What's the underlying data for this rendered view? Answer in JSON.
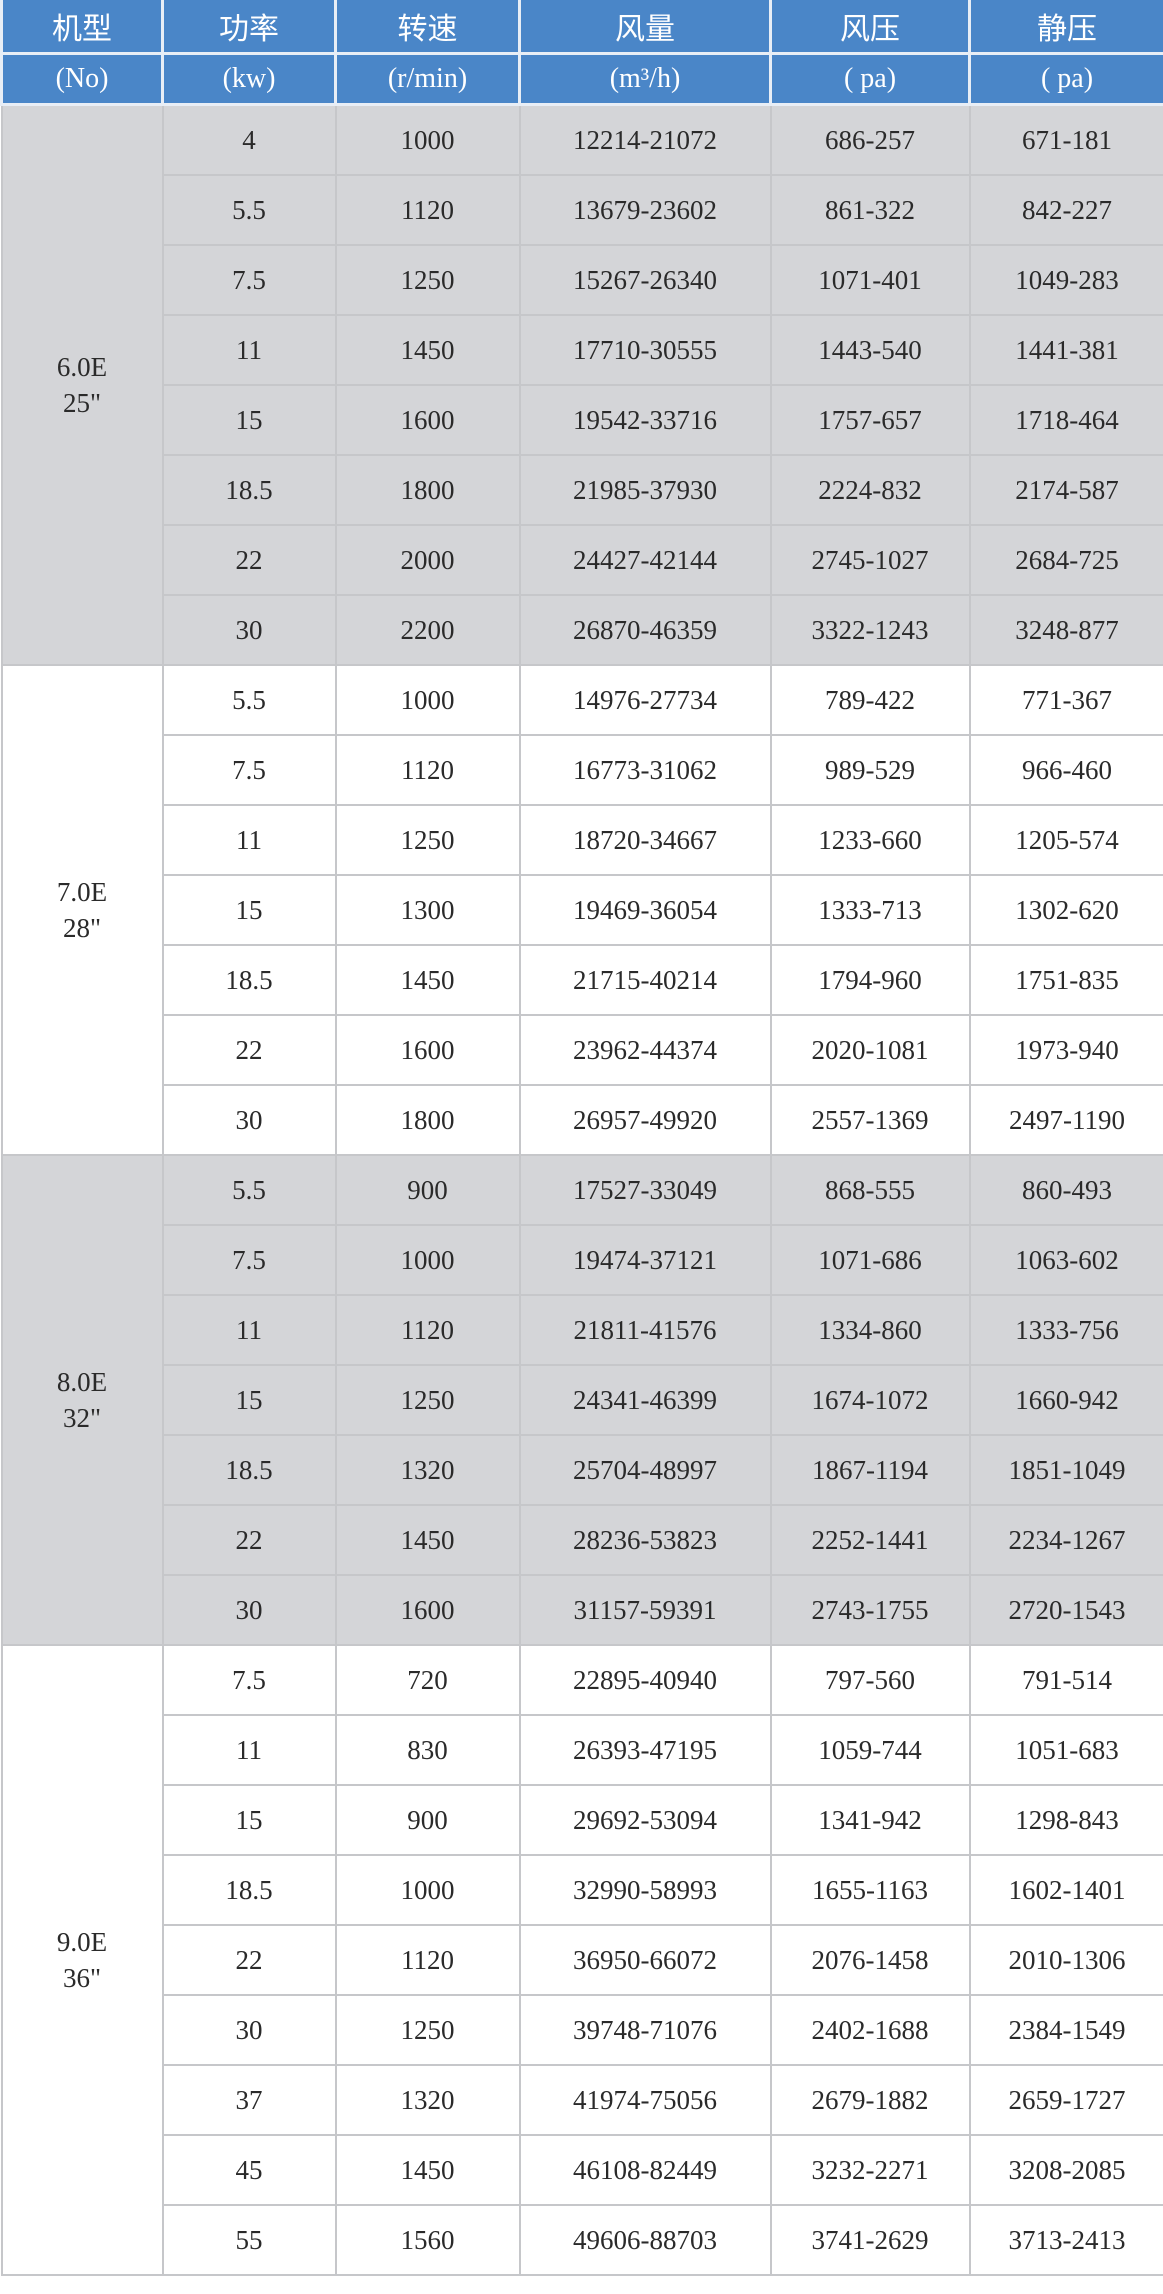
{
  "header": {
    "titles": [
      "机型",
      "功率",
      "转速",
      "风量",
      "风压",
      "静压"
    ],
    "units": [
      "(No)",
      "(kw)",
      "(r/min)",
      "(m³/h)",
      "( pa)",
      "( pa)"
    ]
  },
  "colors": {
    "header_bg": "#4a86c8",
    "shaded_row": "#d4d5d8",
    "plain_row": "#ffffff",
    "grid": "#c6c7ca"
  },
  "groups": [
    {
      "model": "6.0E",
      "size": "25\"",
      "shaded": true,
      "rows": [
        [
          "4",
          "1000",
          "12214-21072",
          "686-257",
          "671-181"
        ],
        [
          "5.5",
          "1120",
          "13679-23602",
          "861-322",
          "842-227"
        ],
        [
          "7.5",
          "1250",
          "15267-26340",
          "1071-401",
          "1049-283"
        ],
        [
          "11",
          "1450",
          "17710-30555",
          "1443-540",
          "1441-381"
        ],
        [
          "15",
          "1600",
          "19542-33716",
          "1757-657",
          "1718-464"
        ],
        [
          "18.5",
          "1800",
          "21985-37930",
          "2224-832",
          "2174-587"
        ],
        [
          "22",
          "2000",
          "24427-42144",
          "2745-1027",
          "2684-725"
        ],
        [
          "30",
          "2200",
          "26870-46359",
          "3322-1243",
          "3248-877"
        ]
      ]
    },
    {
      "model": "7.0E",
      "size": "28\"",
      "shaded": false,
      "rows": [
        [
          "5.5",
          "1000",
          "14976-27734",
          "789-422",
          "771-367"
        ],
        [
          "7.5",
          "1120",
          "16773-31062",
          "989-529",
          "966-460"
        ],
        [
          "11",
          "1250",
          "18720-34667",
          "1233-660",
          "1205-574"
        ],
        [
          "15",
          "1300",
          "19469-36054",
          "1333-713",
          "1302-620"
        ],
        [
          "18.5",
          "1450",
          "21715-40214",
          "1794-960",
          "1751-835"
        ],
        [
          "22",
          "1600",
          "23962-44374",
          "2020-1081",
          "1973-940"
        ],
        [
          "30",
          "1800",
          "26957-49920",
          "2557-1369",
          "2497-1190"
        ]
      ]
    },
    {
      "model": "8.0E",
      "size": "32\"",
      "shaded": true,
      "rows": [
        [
          "5.5",
          "900",
          "17527-33049",
          "868-555",
          "860-493"
        ],
        [
          "7.5",
          "1000",
          "19474-37121",
          "1071-686",
          "1063-602"
        ],
        [
          "11",
          "1120",
          "21811-41576",
          "1334-860",
          "1333-756"
        ],
        [
          "15",
          "1250",
          "24341-46399",
          "1674-1072",
          "1660-942"
        ],
        [
          "18.5",
          "1320",
          "25704-48997",
          "1867-1194",
          "1851-1049"
        ],
        [
          "22",
          "1450",
          "28236-53823",
          "2252-1441",
          "2234-1267"
        ],
        [
          "30",
          "1600",
          "31157-59391",
          "2743-1755",
          "2720-1543"
        ]
      ]
    },
    {
      "model": "9.0E",
      "size": "36\"",
      "shaded": false,
      "rows": [
        [
          "7.5",
          "720",
          "22895-40940",
          "797-560",
          "791-514"
        ],
        [
          "11",
          "830",
          "26393-47195",
          "1059-744",
          "1051-683"
        ],
        [
          "15",
          "900",
          "29692-53094",
          "1341-942",
          "1298-843"
        ],
        [
          "18.5",
          "1000",
          "32990-58993",
          "1655-1163",
          "1602-1401"
        ],
        [
          "22",
          "1120",
          "36950-66072",
          "2076-1458",
          "2010-1306"
        ],
        [
          "30",
          "1250",
          "39748-71076",
          "2402-1688",
          "2384-1549"
        ],
        [
          "37",
          "1320",
          "41974-75056",
          "2679-1882",
          "2659-1727"
        ],
        [
          "45",
          "1450",
          "46108-82449",
          "3232-2271",
          "3208-2085"
        ],
        [
          "55",
          "1560",
          "49606-88703",
          "3741-2629",
          "3713-2413"
        ]
      ]
    }
  ]
}
